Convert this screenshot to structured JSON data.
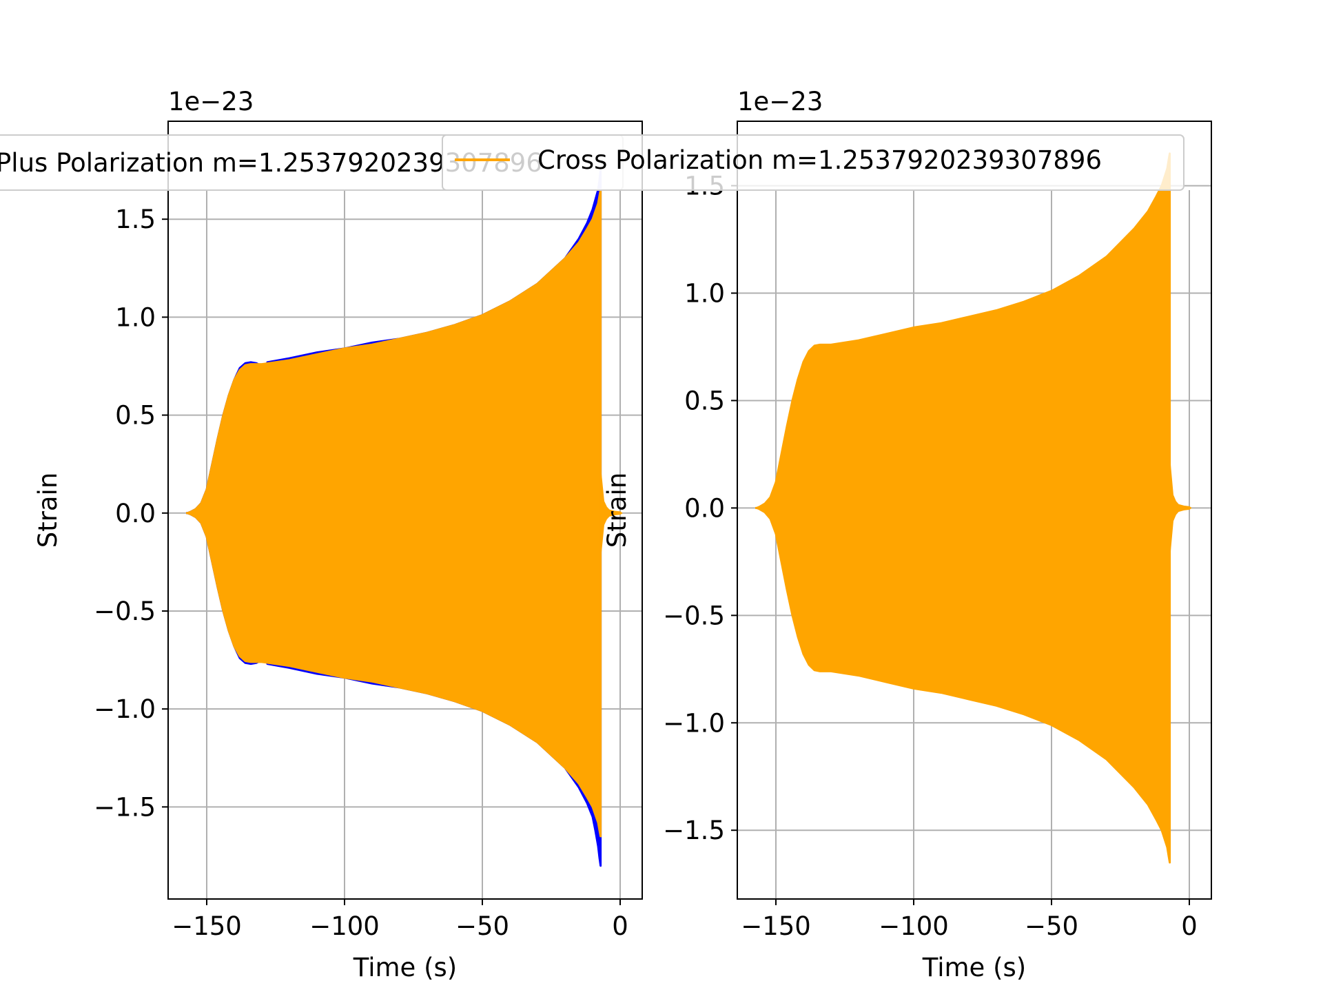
{
  "chart_data": [
    {
      "type": "line",
      "title": "",
      "xlabel": "Time (s)",
      "ylabel": "Strain",
      "offset_text": "1e−23",
      "xlim": [
        -164,
        8
      ],
      "ylim": [
        -1.97,
        2.0
      ],
      "xticks": [
        -150,
        -100,
        -50,
        0
      ],
      "xtick_labels": [
        "−150",
        "−100",
        "−50",
        "0"
      ],
      "yticks": [
        -1.5,
        -1.0,
        -0.5,
        0.0,
        0.5,
        1.0,
        1.5
      ],
      "ytick_labels": [
        "−1.5",
        "−1.0",
        "−0.5",
        "0.0",
        "0.5",
        "1.0",
        "1.5"
      ],
      "grid": true,
      "legend_loc": "upper center",
      "series": [
        {
          "name": "Plus Polarization m=1.2537920239307896",
          "color": "#0000ff",
          "envelope_time": [
            -157,
            -156,
            -154,
            -152,
            -150,
            -148,
            -146,
            -144,
            -142,
            -140,
            -138,
            -136,
            -134,
            -132,
            -130,
            -129,
            -128,
            -120,
            -110,
            -100,
            -90,
            -80,
            -70,
            -60,
            -50,
            -40,
            -30,
            -20,
            -15,
            -12,
            -10,
            -9,
            -8,
            -7.5,
            -7.1
          ],
          "envelope_upper": [
            0.0,
            0.005,
            0.02,
            0.05,
            0.12,
            0.25,
            0.38,
            0.5,
            0.6,
            0.68,
            0.74,
            0.765,
            0.77,
            0.765,
            0.75,
            0.7,
            0.77,
            0.79,
            0.82,
            0.84,
            0.87,
            0.89,
            0.92,
            0.96,
            1.01,
            1.08,
            1.17,
            1.3,
            1.4,
            1.48,
            1.55,
            1.6,
            1.65,
            1.7,
            1.75
          ],
          "envelope_lower": [
            0.0,
            -0.005,
            -0.02,
            -0.05,
            -0.12,
            -0.25,
            -0.38,
            -0.5,
            -0.6,
            -0.68,
            -0.74,
            -0.765,
            -0.77,
            -0.765,
            -0.75,
            -0.7,
            -0.77,
            -0.79,
            -0.82,
            -0.84,
            -0.87,
            -0.89,
            -0.92,
            -0.96,
            -1.01,
            -1.08,
            -1.17,
            -1.3,
            -1.4,
            -1.48,
            -1.55,
            -1.62,
            -1.7,
            -1.76,
            -1.8
          ]
        },
        {
          "name": "Cross Polarization m=1.2537920239307896",
          "color": "#ffa500",
          "envelope_time": [
            -157,
            -156,
            -154,
            -152,
            -150,
            -148,
            -146,
            -144,
            -142,
            -140,
            -138,
            -136,
            -134,
            -132,
            -130,
            -120,
            -110,
            -100,
            -90,
            -80,
            -70,
            -60,
            -50,
            -40,
            -30,
            -20,
            -15,
            -12,
            -10,
            -9,
            -8,
            -7.5,
            -7.1
          ],
          "envelope_upper": [
            0.0,
            0.005,
            0.02,
            0.05,
            0.12,
            0.25,
            0.38,
            0.5,
            0.6,
            0.68,
            0.73,
            0.755,
            0.76,
            0.76,
            0.76,
            0.78,
            0.81,
            0.84,
            0.86,
            0.89,
            0.92,
            0.96,
            1.01,
            1.08,
            1.17,
            1.3,
            1.38,
            1.45,
            1.5,
            1.54,
            1.58,
            1.62,
            1.65
          ],
          "envelope_lower": [
            0.0,
            -0.005,
            -0.02,
            -0.05,
            -0.12,
            -0.25,
            -0.38,
            -0.5,
            -0.6,
            -0.68,
            -0.73,
            -0.755,
            -0.76,
            -0.76,
            -0.76,
            -0.78,
            -0.81,
            -0.84,
            -0.86,
            -0.89,
            -0.92,
            -0.96,
            -1.01,
            -1.08,
            -1.17,
            -1.3,
            -1.38,
            -1.45,
            -1.5,
            -1.54,
            -1.58,
            -1.62,
            -1.65
          ],
          "tail_time": [
            -7.0,
            -6.0,
            -5.0,
            -4.0,
            -2.0,
            0.0,
            0.5
          ],
          "tail_upper": [
            0.2,
            0.06,
            0.03,
            0.015,
            0.008,
            0.005,
            0.0
          ],
          "tail_lower": [
            -0.2,
            -0.06,
            -0.03,
            -0.015,
            -0.008,
            -0.005,
            0.0
          ]
        }
      ]
    },
    {
      "type": "line",
      "title": "",
      "xlabel": "Time (s)",
      "ylabel": "Strain",
      "offset_text": "1e−23",
      "xlim": [
        -164,
        8
      ],
      "ylim": [
        -1.82,
        1.8
      ],
      "xticks": [
        -150,
        -100,
        -50,
        0
      ],
      "xtick_labels": [
        "−150",
        "−100",
        "−50",
        "0"
      ],
      "yticks": [
        -1.5,
        -1.0,
        -0.5,
        0.0,
        0.5,
        1.0,
        1.5
      ],
      "ytick_labels": [
        "−1.5",
        "−1.0",
        "−0.5",
        "0.0",
        "0.5",
        "1.0",
        "1.5"
      ],
      "grid": true,
      "legend_loc": "upper center",
      "series": [
        {
          "name": "Cross Polarization m=1.2537920239307896",
          "color": "#ffa500",
          "envelope_time": [
            -157,
            -156,
            -154,
            -152,
            -150,
            -148,
            -146,
            -144,
            -142,
            -140,
            -138,
            -136,
            -134,
            -132,
            -130,
            -120,
            -110,
            -100,
            -90,
            -80,
            -70,
            -60,
            -50,
            -40,
            -30,
            -20,
            -15,
            -12,
            -10,
            -9,
            -8,
            -7.5,
            -7.1
          ],
          "envelope_upper": [
            0.0,
            0.005,
            0.02,
            0.05,
            0.12,
            0.25,
            0.38,
            0.5,
            0.6,
            0.68,
            0.73,
            0.755,
            0.76,
            0.76,
            0.76,
            0.78,
            0.81,
            0.84,
            0.86,
            0.89,
            0.92,
            0.96,
            1.01,
            1.08,
            1.17,
            1.3,
            1.38,
            1.45,
            1.5,
            1.54,
            1.58,
            1.62,
            1.65
          ],
          "envelope_lower": [
            0.0,
            -0.005,
            -0.02,
            -0.05,
            -0.12,
            -0.25,
            -0.38,
            -0.5,
            -0.6,
            -0.68,
            -0.73,
            -0.755,
            -0.76,
            -0.76,
            -0.76,
            -0.78,
            -0.81,
            -0.84,
            -0.86,
            -0.89,
            -0.92,
            -0.96,
            -1.01,
            -1.08,
            -1.17,
            -1.3,
            -1.38,
            -1.45,
            -1.5,
            -1.54,
            -1.58,
            -1.62,
            -1.65
          ],
          "tail_time": [
            -7.0,
            -6.0,
            -5.0,
            -4.0,
            -2.0,
            0.0,
            0.5
          ],
          "tail_upper": [
            0.2,
            0.06,
            0.03,
            0.015,
            0.008,
            0.005,
            0.0
          ],
          "tail_lower": [
            -0.2,
            -0.06,
            -0.03,
            -0.015,
            -0.008,
            -0.005,
            0.0
          ]
        }
      ]
    }
  ]
}
